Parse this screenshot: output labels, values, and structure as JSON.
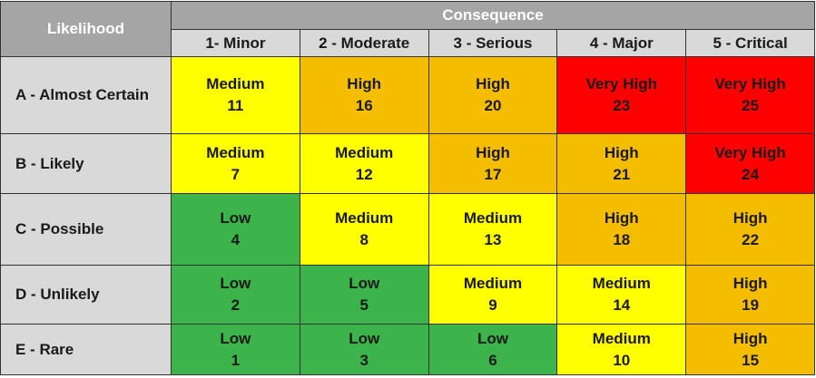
{
  "header": {
    "row_title": "Likelihood",
    "column_title": "Consequence"
  },
  "columns": [
    "1- Minor",
    "2 - Moderate",
    "3 - Serious",
    "4 - Major",
    "5 - Critical"
  ],
  "level_colors": {
    "Low": "#3cb44b",
    "Medium": "#ffff00",
    "High": "#f5bd00",
    "Very High": "#ff0000"
  },
  "rows": [
    {
      "label": "A - Almost Certain",
      "cells": [
        {
          "level": "Medium",
          "score": 11
        },
        {
          "level": "High",
          "score": 16
        },
        {
          "level": "High",
          "score": 20
        },
        {
          "level": "Very High",
          "score": 23
        },
        {
          "level": "Very High",
          "score": 25
        }
      ]
    },
    {
      "label": "B - Likely",
      "cells": [
        {
          "level": "Medium",
          "score": 7
        },
        {
          "level": "Medium",
          "score": 12
        },
        {
          "level": "High",
          "score": 17
        },
        {
          "level": "High",
          "score": 21
        },
        {
          "level": "Very High",
          "score": 24
        }
      ]
    },
    {
      "label": "C - Possible",
      "cells": [
        {
          "level": "Low",
          "score": 4
        },
        {
          "level": "Medium",
          "score": 8
        },
        {
          "level": "Medium",
          "score": 13
        },
        {
          "level": "High",
          "score": 18
        },
        {
          "level": "High",
          "score": 22
        }
      ]
    },
    {
      "label": "D - Unlikely",
      "cells": [
        {
          "level": "Low",
          "score": 2
        },
        {
          "level": "Low",
          "score": 5
        },
        {
          "level": "Medium",
          "score": 9
        },
        {
          "level": "Medium",
          "score": 14
        },
        {
          "level": "High",
          "score": 19
        }
      ]
    },
    {
      "label": "E - Rare",
      "cells": [
        {
          "level": "Low",
          "score": 1
        },
        {
          "level": "Low",
          "score": 3
        },
        {
          "level": "Low",
          "score": 6
        },
        {
          "level": "Medium",
          "score": 10
        },
        {
          "level": "High",
          "score": 15
        }
      ]
    }
  ]
}
